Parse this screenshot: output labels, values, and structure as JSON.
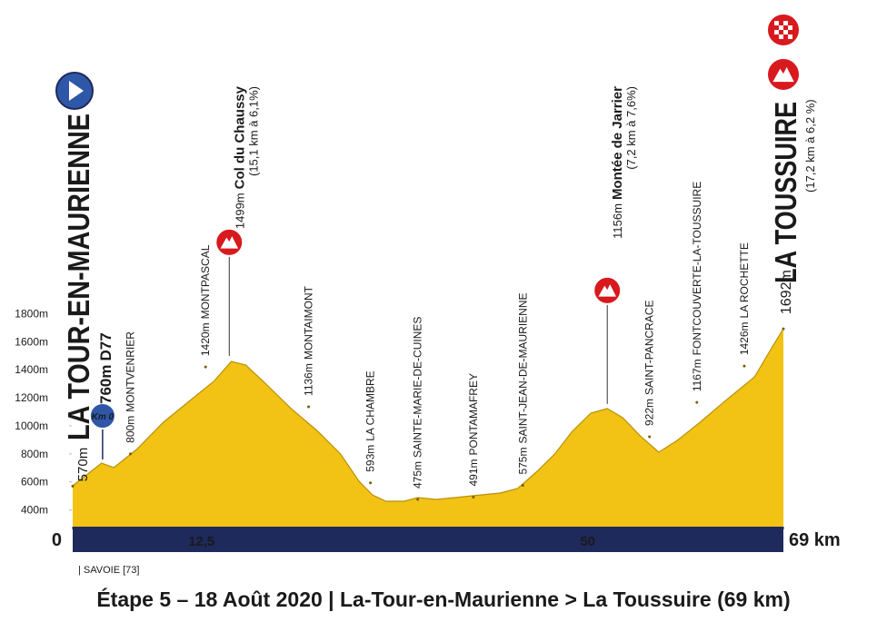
{
  "chart_data": {
    "type": "area",
    "title": "Étape 5 – 18 Août 2020 | La-Tour-en-Maurienne > La Toussuire (69 km)",
    "region": "| SAVOIE [73]",
    "color": "#f2c314",
    "xlim": [
      0,
      69
    ],
    "xticks": [
      0,
      {
        "value": 12.5,
        "label": "12,5"
      },
      50,
      {
        "value": 69,
        "label": "69 km"
      }
    ],
    "ylim": [
      300,
      1900
    ],
    "yticks": [
      {
        "value": 400,
        "label": "400m"
      },
      {
        "value": 600,
        "label": "600m"
      },
      {
        "value": 800,
        "label": "800m"
      },
      {
        "value": 1000,
        "label": "1000m"
      },
      {
        "value": 1200,
        "label": "1200m"
      },
      {
        "value": 1400,
        "label": "1400m"
      },
      {
        "value": 1600,
        "label": "1600m"
      },
      {
        "value": 1800,
        "label": "1800m"
      }
    ],
    "x": [
      0,
      2.8,
      4.0,
      6.2,
      8.8,
      11.5,
      13.7,
      15.4,
      16.8,
      18.5,
      21.2,
      23.8,
      26.0,
      27.8,
      29.1,
      30.4,
      32.2,
      33.5,
      35.3,
      37.1,
      38.8,
      41.5,
      43.2,
      45.0,
      46.8,
      48.5,
      50.3,
      51.9,
      53.4,
      55.1,
      56.9,
      58.7,
      60.9,
      63.5,
      66.2,
      67.9,
      69.0
    ],
    "values": [
      572,
      734,
      702,
      831,
      1025,
      1187,
      1317,
      1459,
      1433,
      1317,
      1123,
      961,
      799,
      604,
      507,
      462,
      462,
      488,
      475,
      488,
      501,
      520,
      553,
      669,
      799,
      961,
      1090,
      1123,
      1058,
      928,
      812,
      896,
      1025,
      1187,
      1349,
      1560,
      1692
    ],
    "start": {
      "km": 0,
      "altitude": 570,
      "altitude_label": "570m",
      "name": "LA TOUR-EN-MAURIENNE"
    },
    "km0": {
      "km": 2.9,
      "altitude": 760,
      "altitude_label": "760m",
      "road": "D77",
      "badge": "Km 0"
    },
    "finish": {
      "km": 69,
      "altitude": 1692,
      "altitude_label": "1692m",
      "name": "LA TOUSSUIRE",
      "detail": "(17,2 km à 6,2 %)"
    },
    "climbs": [
      {
        "km": 15.2,
        "altitude": 1499,
        "altitude_label": "1499m",
        "name": "Col du Chaussy",
        "detail": "(15,1 km à 6,1%)"
      },
      {
        "km": 51.9,
        "altitude": 1156,
        "altitude_label": "1156m",
        "name": "Montée de Jarrier",
        "detail": "(7,2 km à 7,6%)"
      }
    ],
    "waypoints": [
      {
        "km": 5.6,
        "altitude": 800,
        "altitude_label": "800m",
        "name": "MONTVENRIER"
      },
      {
        "km": 12.9,
        "altitude": 1420,
        "altitude_label": "1420m",
        "name": "MONTPASCAL"
      },
      {
        "km": 22.9,
        "altitude": 1136,
        "altitude_label": "1136m",
        "name": "MONTAIMONT"
      },
      {
        "km": 28.9,
        "altitude": 593,
        "altitude_label": "593m",
        "name": "LA CHAMBRE"
      },
      {
        "km": 33.5,
        "altitude": 475,
        "altitude_label": "475m",
        "name": "SAINTE-MARIE-DE-CUINES"
      },
      {
        "km": 38.9,
        "altitude": 491,
        "altitude_label": "491m",
        "name": "PONTAMAFREY"
      },
      {
        "km": 43.7,
        "altitude": 575,
        "altitude_label": "575m",
        "name": "SAINT-JEAN-DE-MAURIENNE"
      },
      {
        "km": 56.0,
        "altitude": 922,
        "altitude_label": "922m",
        "name": "SAINT-PANCRACE"
      },
      {
        "km": 60.6,
        "altitude": 1167,
        "altitude_label": "1167m",
        "name": "FONTCOUVERTE-LA-TOUSSUIRE"
      },
      {
        "km": 65.2,
        "altitude": 1426,
        "altitude_label": "1426m",
        "name": "LA ROCHETTE"
      }
    ]
  }
}
